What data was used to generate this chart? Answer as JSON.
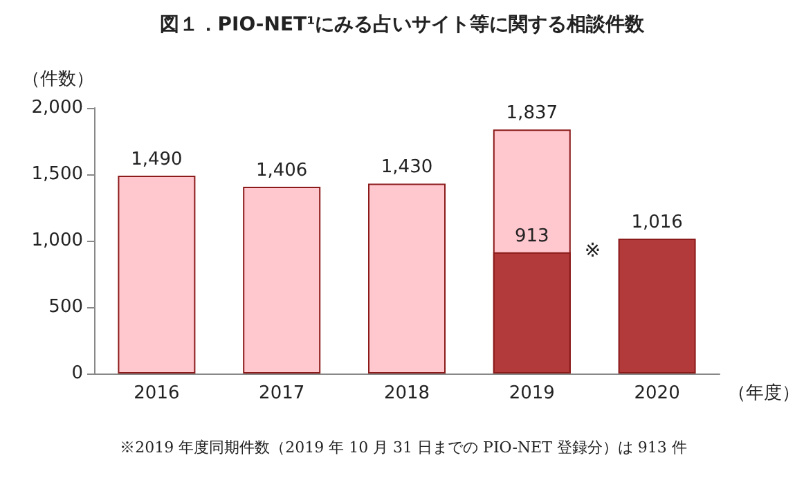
{
  "chart_data": {
    "type": "bar",
    "title": "図１．PIO-NET¹にみる占いサイト等に関する相談件数",
    "ylabel": "（件数）",
    "xlabel": "（年度）",
    "categories": [
      "2016",
      "2017",
      "2018",
      "2019",
      "2020"
    ],
    "series": [
      {
        "color": "#ffc7ce",
        "values": [
          1490,
          1406,
          1430,
          1837,
          null
        ],
        "value_labels": [
          "1,490",
          "1,406",
          "1,430",
          "1,837",
          null
        ]
      },
      {
        "color": "#b23a3a",
        "values": [
          null,
          null,
          null,
          913,
          1016
        ],
        "value_labels": [
          null,
          null,
          null,
          "913",
          "1,016"
        ]
      }
    ],
    "ylim": [
      0,
      2000
    ],
    "yticks": [
      {
        "value": 0,
        "label": "0"
      },
      {
        "value": 500,
        "label": "500"
      },
      {
        "value": 1000,
        "label": "1,000"
      },
      {
        "value": 1500,
        "label": "1,500"
      },
      {
        "value": 2000,
        "label": "2,000"
      }
    ],
    "grid": false,
    "annotations": [
      {
        "text": "※",
        "x": "2019",
        "y": 913
      },
      "※2019 年度同期件数（2019 年 10 月 31 日までの PIO-NET 登録分）は 913 件"
    ]
  }
}
